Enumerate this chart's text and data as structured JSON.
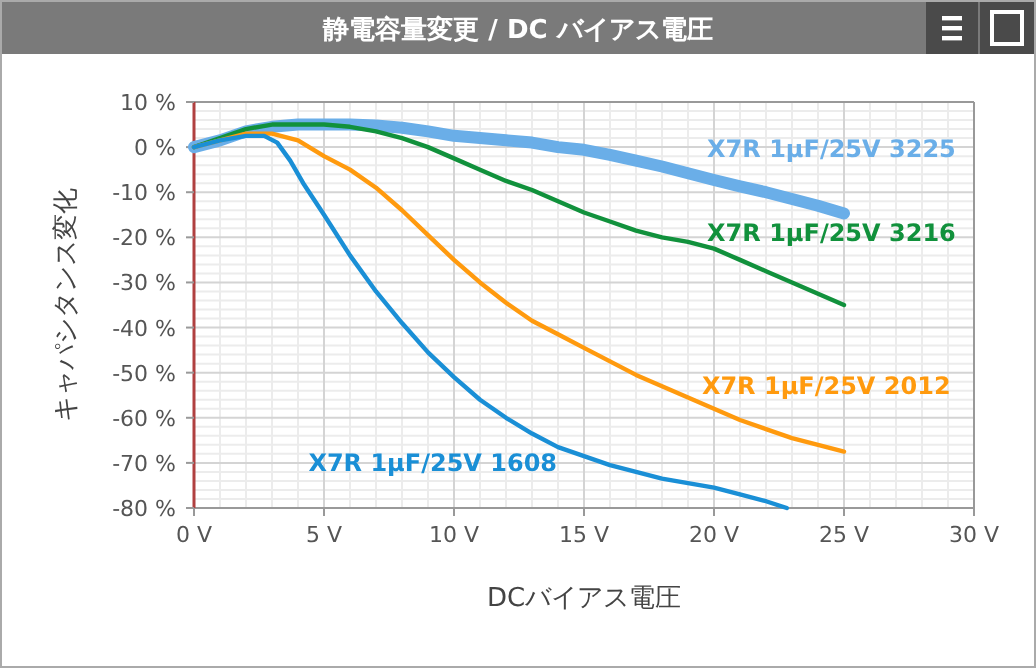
{
  "chart_data": {
    "type": "line",
    "title": "静電容量変更 / DC バイアス電圧",
    "xlabel": "DCバイアス電圧",
    "ylabel": "キャパシタンス変化",
    "xlim": [
      0,
      30
    ],
    "ylim": [
      -80,
      10
    ],
    "xticks": [
      {
        "value": 0,
        "label": "0 V"
      },
      {
        "value": 5,
        "label": "5 V"
      },
      {
        "value": 10,
        "label": "10 V"
      },
      {
        "value": 15,
        "label": "15 V"
      },
      {
        "value": 20,
        "label": "20 V"
      },
      {
        "value": 25,
        "label": "25 V"
      },
      {
        "value": 30,
        "label": "30 V"
      }
    ],
    "yticks": [
      {
        "value": 10,
        "label": "10 %"
      },
      {
        "value": 0,
        "label": "0 %"
      },
      {
        "value": -10,
        "label": "-10 %"
      },
      {
        "value": -20,
        "label": "-20 %"
      },
      {
        "value": -30,
        "label": "-30 %"
      },
      {
        "value": -40,
        "label": "-40 %"
      },
      {
        "value": -50,
        "label": "-50 %"
      },
      {
        "value": -60,
        "label": "-60 %"
      },
      {
        "value": -70,
        "label": "-70 %"
      },
      {
        "value": -80,
        "label": "-80 %"
      }
    ],
    "grid": true,
    "series": [
      {
        "name": "X7R  1μF/25V  3225",
        "color": "#6aaee8",
        "x": [
          0,
          1,
          2,
          3,
          4,
          5,
          6,
          7,
          8,
          9,
          10,
          11,
          12,
          13,
          14,
          15,
          16,
          17,
          18,
          19,
          20,
          21,
          22,
          23,
          24,
          25
        ],
        "values": [
          0,
          1.5,
          3.5,
          4.5,
          5,
          5,
          5,
          4.8,
          4.3,
          3.5,
          2.5,
          2,
          1.5,
          1,
          0,
          -0.6,
          -1.7,
          -3,
          -4.3,
          -5.8,
          -7.3,
          -8.7,
          -10,
          -11.5,
          -13,
          -14.7
        ]
      },
      {
        "name": "X7R  1μF/25V  3216",
        "color": "#11913c",
        "x": [
          0,
          1,
          2,
          3,
          4,
          5,
          6,
          7,
          8,
          9,
          10,
          11,
          12,
          13,
          14,
          15,
          16,
          17,
          18,
          19,
          20,
          21,
          22,
          23,
          24,
          25
        ],
        "values": [
          0,
          2,
          4,
          5,
          5,
          5,
          4.5,
          3.5,
          2,
          0,
          -2.5,
          -5,
          -7.5,
          -9.5,
          -12,
          -14.5,
          -16.5,
          -18.5,
          -20,
          -21,
          -22.5,
          -25,
          -27.5,
          -30,
          -32.5,
          -35
        ]
      },
      {
        "name": "X7R  1μF/25V  2012",
        "color": "#ff9a0e",
        "x": [
          0,
          1,
          2,
          3,
          4,
          5,
          6,
          7,
          8,
          9,
          10,
          11,
          12,
          13,
          14,
          15,
          16,
          17,
          18,
          19,
          20,
          21,
          22,
          23,
          24,
          25
        ],
        "values": [
          0,
          1.5,
          3,
          3,
          1.5,
          -2,
          -5,
          -9,
          -14,
          -19.5,
          -25,
          -30,
          -34.5,
          -38.5,
          -41.5,
          -44.5,
          -47.5,
          -50.5,
          -53,
          -55.5,
          -58,
          -60.5,
          -62.5,
          -64.5,
          -66,
          -67.5
        ]
      },
      {
        "name": "X7R  1μF/25V  1608",
        "color": "#1a8fd6",
        "x": [
          0,
          1,
          2,
          2.7,
          3.2,
          3.7,
          4.2,
          5,
          6,
          7,
          8,
          9,
          10,
          11,
          12,
          13,
          14,
          15,
          16,
          17,
          18,
          19,
          20,
          21,
          22,
          22.8
        ],
        "values": [
          0,
          1.5,
          2.5,
          2.5,
          1,
          -3,
          -8,
          -15,
          -24,
          -32,
          -39,
          -45.5,
          -51,
          -56,
          -60,
          -63.5,
          -66.5,
          -68.5,
          -70.5,
          -72,
          -73.5,
          -74.5,
          -75.5,
          -77,
          -78.5,
          -80
        ]
      }
    ]
  }
}
